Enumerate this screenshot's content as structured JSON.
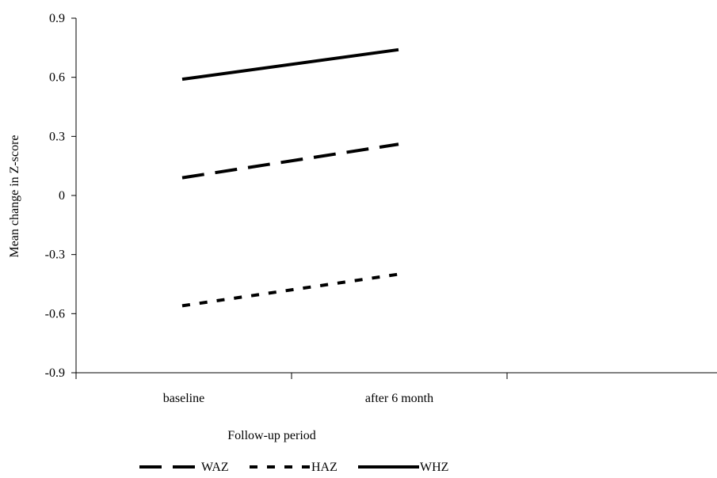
{
  "chart_data": {
    "type": "line",
    "categories": [
      "baseline",
      "after 6 month"
    ],
    "series": [
      {
        "name": "WAZ",
        "values": [
          0.09,
          0.26
        ],
        "color": "#000000",
        "dash": "long-dash"
      },
      {
        "name": "HAZ",
        "values": [
          -0.56,
          -0.4
        ],
        "color": "#000000",
        "dash": "short-dash"
      },
      {
        "name": "WHZ",
        "values": [
          0.59,
          0.74
        ],
        "color": "#000000",
        "dash": "solid"
      }
    ],
    "title": "",
    "xlabel": "Follow-up period",
    "ylabel": "Mean change in Z-score",
    "ylim": [
      -0.9,
      0.9
    ],
    "yticks": [
      "0.9",
      "0.6",
      "0.3",
      "0",
      "-0.3",
      "-0.6",
      "-0.9"
    ],
    "grid": false,
    "legend": "bottom"
  }
}
